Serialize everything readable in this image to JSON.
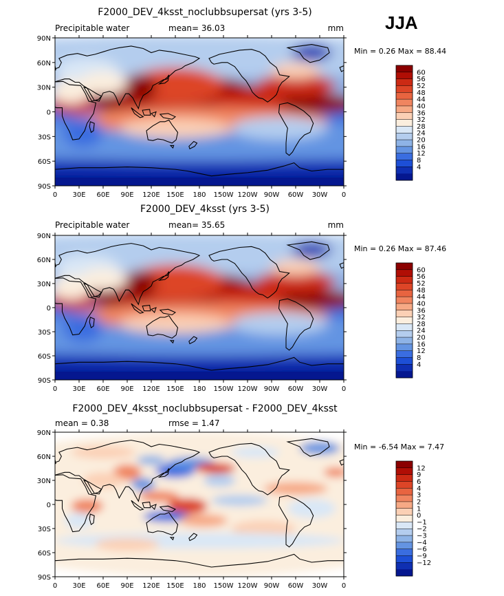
{
  "season_label": "JJA",
  "panels": [
    {
      "title": "F2000_DEV_4ksst_noclubbsupersat (yrs 3-5)",
      "left_label": "Precipitable water",
      "center_label": "mean=   36.03",
      "units": "mm",
      "minmax": "Min =    0.26  Max =   88.44",
      "kind": "abs"
    },
    {
      "title": "F2000_DEV_4ksst (yrs 3-5)",
      "left_label": "Precipitable water",
      "center_label": "mean=   35.65",
      "units": "mm",
      "minmax": "Min =    0.26  Max =   87.46",
      "kind": "abs"
    },
    {
      "title": "F2000_DEV_4ksst_noclubbsupersat - F2000_DEV_4ksst",
      "left_label": "mean =    0.38",
      "center_label": "rmse =    1.47",
      "units": "",
      "minmax": "Min =   -6.54  Max =    7.47",
      "kind": "diff"
    }
  ],
  "axes": {
    "lat_ticks": [
      "90N",
      "60N",
      "30N",
      "0",
      "30S",
      "60S",
      "90S"
    ],
    "lon_ticks": [
      "0",
      "30E",
      "60E",
      "90E",
      "120E",
      "150E",
      "180",
      "150W",
      "120W",
      "90W",
      "60W",
      "30W",
      "0"
    ]
  },
  "colorbars": {
    "abs": {
      "labels": [
        "60",
        "56",
        "52",
        "48",
        "44",
        "40",
        "36",
        "32",
        "28",
        "24",
        "20",
        "16",
        "12",
        "8",
        "4"
      ],
      "colors": [
        "#8b0000",
        "#b00e05",
        "#cc2a14",
        "#dd4527",
        "#e86440",
        "#f08560",
        "#f6a985",
        "#fbd0b5",
        "#fbeede",
        "#d9e7f6",
        "#b4cdee",
        "#8eb3e6",
        "#6494e2",
        "#3a6de0",
        "#1d4fd6",
        "#0f2fb2",
        "#05178f"
      ]
    },
    "diff": {
      "labels": [
        "12",
        "9",
        "6",
        "4",
        "3",
        "2",
        "1",
        "0",
        "−1",
        "−2",
        "−3",
        "−4",
        "−6",
        "−9",
        "−12"
      ],
      "colors": [
        "#8b0000",
        "#b00e05",
        "#cc2a14",
        "#dd4527",
        "#e86440",
        "#f08560",
        "#f6a985",
        "#fbd0b5",
        "#fbeede",
        "#d9e7f6",
        "#b4cdee",
        "#8eb3e6",
        "#6494e2",
        "#3a6de0",
        "#1d4fd6",
        "#0f2fb2",
        "#05178f"
      ]
    }
  },
  "chart_data": [
    {
      "type": "heatmap",
      "title": "F2000_DEV_4ksst_noclubbsupersat (yrs 3-5)",
      "variable": "Precipitable water",
      "units": "mm",
      "season": "JJA",
      "mean": 36.03,
      "min": 0.26,
      "max": 88.44,
      "contour_levels": [
        4,
        8,
        12,
        16,
        20,
        24,
        28,
        32,
        36,
        40,
        44,
        48,
        52,
        56,
        60
      ],
      "xlim_deg": [
        0,
        360
      ],
      "ylim_deg": [
        -90,
        90
      ]
    },
    {
      "type": "heatmap",
      "title": "F2000_DEV_4ksst (yrs 3-5)",
      "variable": "Precipitable water",
      "units": "mm",
      "season": "JJA",
      "mean": 35.65,
      "min": 0.26,
      "max": 87.46,
      "contour_levels": [
        4,
        8,
        12,
        16,
        20,
        24,
        28,
        32,
        36,
        40,
        44,
        48,
        52,
        56,
        60
      ],
      "xlim_deg": [
        0,
        360
      ],
      "ylim_deg": [
        -90,
        90
      ]
    },
    {
      "type": "heatmap",
      "title": "F2000_DEV_4ksst_noclubbsupersat - F2000_DEV_4ksst",
      "season": "JJA",
      "mean": 0.38,
      "rmse": 1.47,
      "min": -6.54,
      "max": 7.47,
      "contour_levels": [
        -12,
        -9,
        -6,
        -4,
        -3,
        -2,
        -1,
        0,
        1,
        2,
        3,
        4,
        6,
        9,
        12
      ],
      "xlim_deg": [
        0,
        360
      ],
      "ylim_deg": [
        -90,
        90
      ]
    }
  ]
}
